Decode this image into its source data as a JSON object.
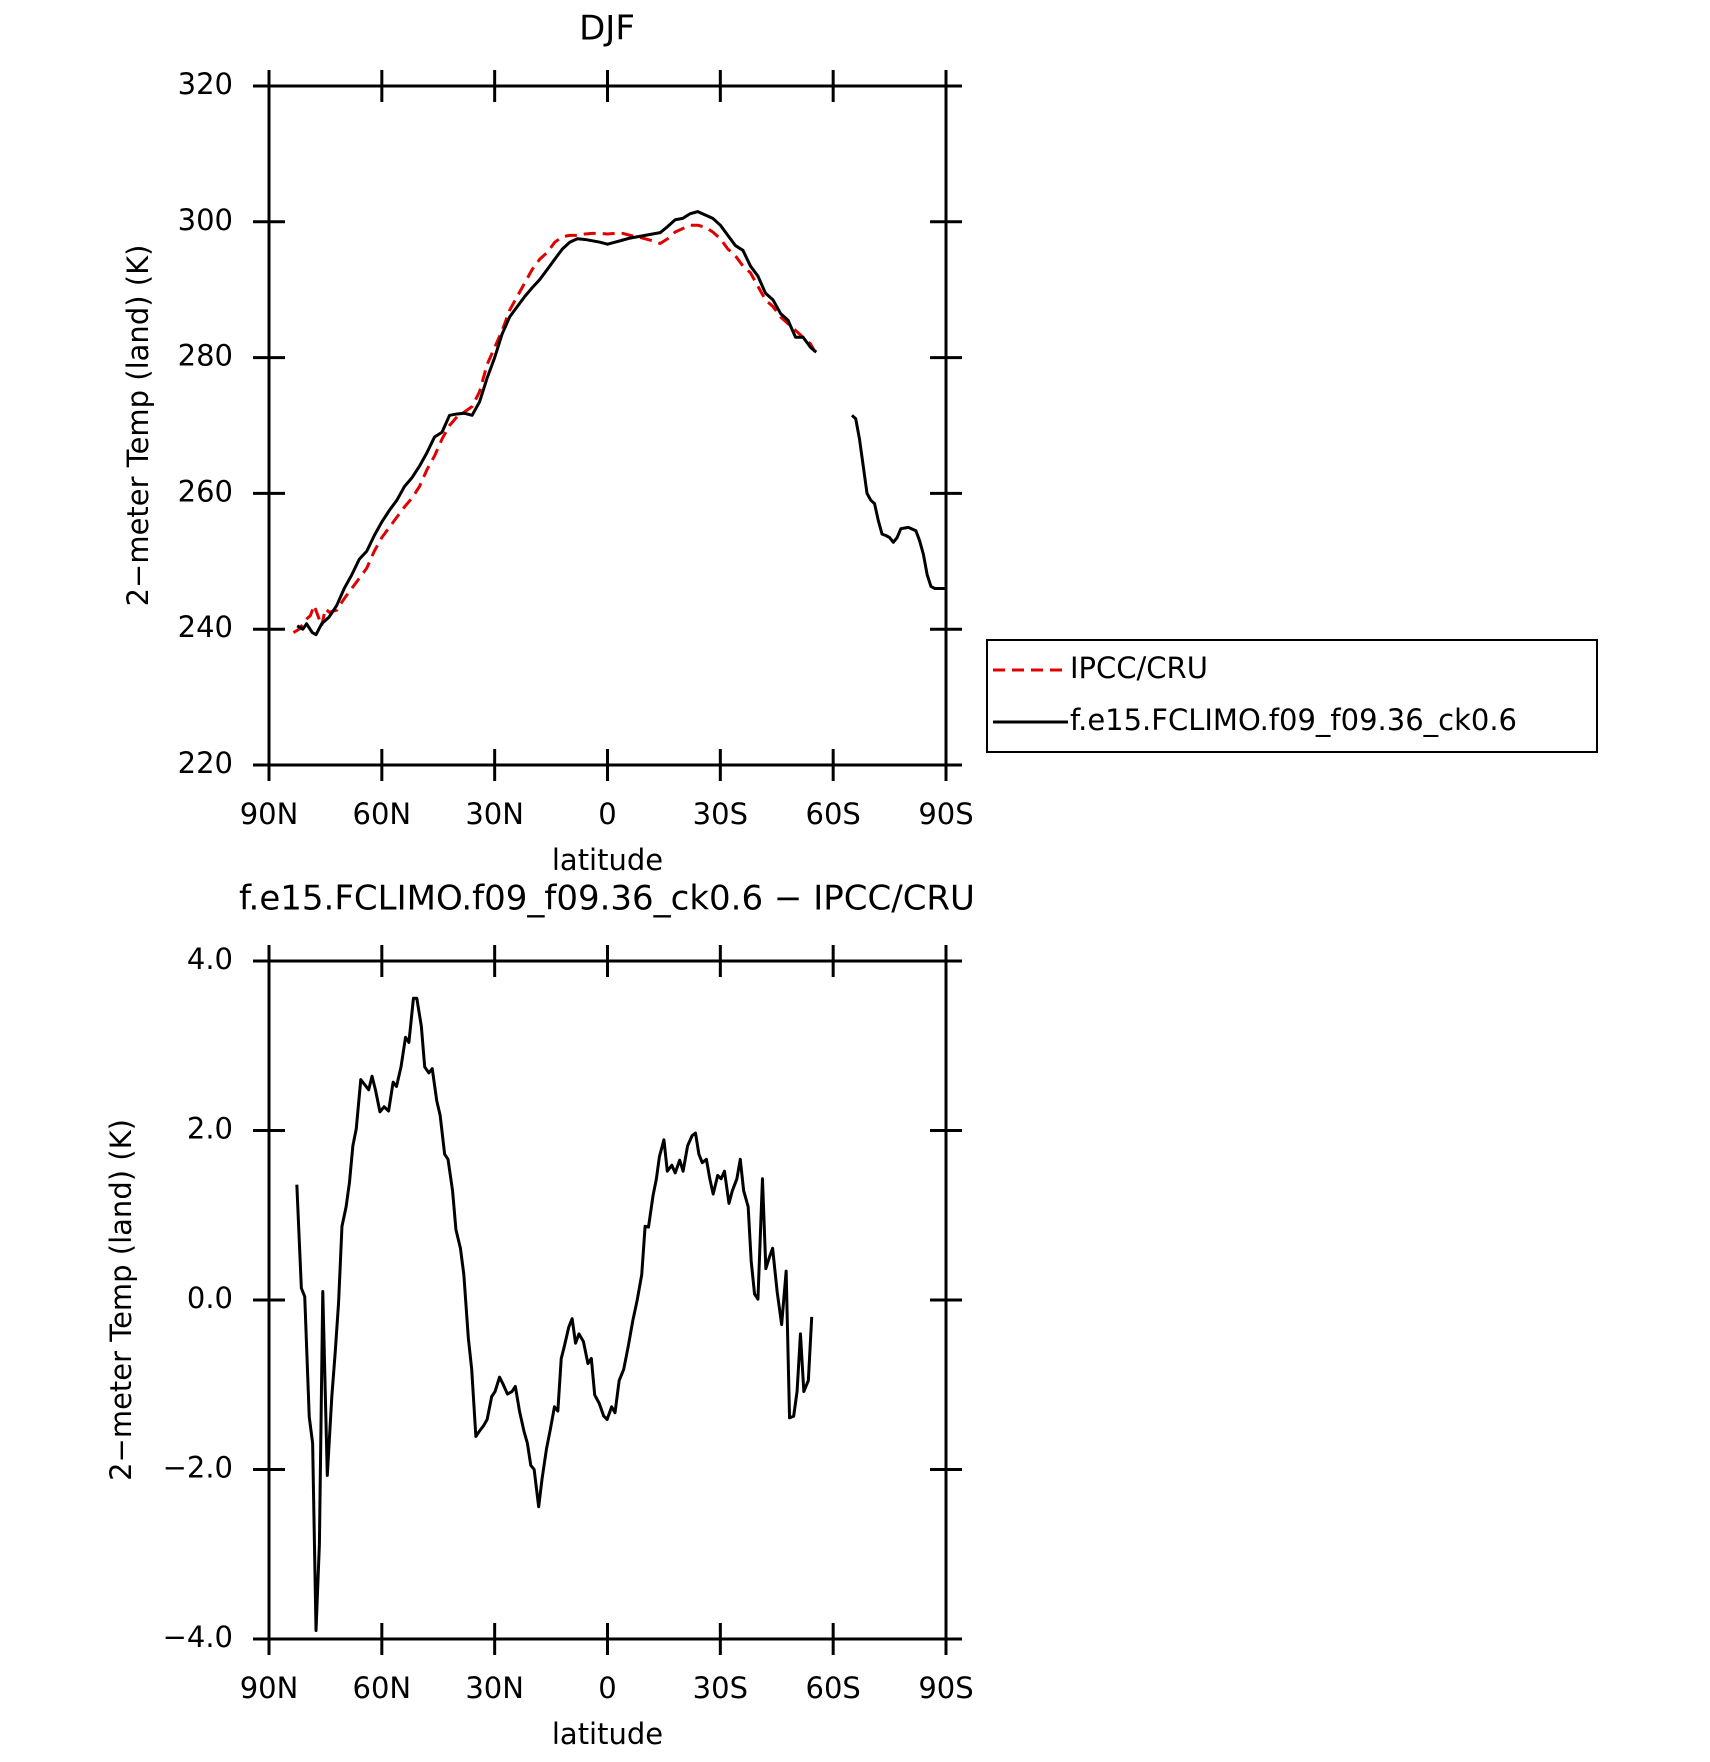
{
  "chart_data": [
    {
      "type": "line",
      "title": "DJF",
      "x_label": "latitude",
      "y_label": "2−meter Temp (land) (K)",
      "xlim": [
        90,
        -90
      ],
      "xticks": [
        {
          "value": 90,
          "label": "90N"
        },
        {
          "value": 60,
          "label": "60N"
        },
        {
          "value": 30,
          "label": "30N"
        },
        0,
        {
          "value": -30,
          "label": "30S"
        },
        {
          "value": -60,
          "label": "60S"
        },
        {
          "value": -90,
          "label": "90S"
        }
      ],
      "ylim": [
        220,
        320
      ],
      "yticks": [
        220,
        240,
        260,
        280,
        300,
        320
      ],
      "legend_position": "right",
      "series": [
        {
          "name": "IPCC/CRU",
          "color": "#e00000",
          "line_style": "dashed",
          "x": [
            83.5,
            82,
            80,
            79,
            78,
            77,
            76,
            75,
            74,
            72,
            70,
            68,
            66,
            64,
            62,
            60,
            58,
            56,
            54,
            52,
            50,
            48,
            46,
            44,
            42,
            40,
            38,
            36,
            34,
            32,
            30,
            28,
            26,
            24,
            22,
            20,
            18,
            16,
            14,
            12,
            10,
            8,
            6,
            4,
            2,
            0,
            -2,
            -4,
            -6,
            -8,
            -10,
            -12,
            -14,
            -16,
            -18,
            -20,
            -22,
            -24,
            -26,
            -28,
            -30,
            -32,
            -34,
            -36,
            -38,
            -40,
            -42,
            -44,
            -46,
            -48,
            -50,
            -52,
            -54,
            -55,
            -56
          ],
          "values": [
            239.5,
            240,
            241.5,
            242,
            243.5,
            242,
            240.5,
            243,
            242.5,
            242.8,
            244.5,
            246,
            247.5,
            249,
            251.5,
            253.5,
            255,
            256.5,
            258,
            259.3,
            261,
            263.5,
            265.5,
            268,
            270,
            271.3,
            272,
            272.8,
            275,
            279,
            281.5,
            284,
            287,
            289,
            291,
            293,
            294.5,
            295.5,
            297,
            297.8,
            298,
            298,
            298.2,
            298.3,
            298.3,
            298.2,
            298.3,
            298.3,
            298,
            297.8,
            297.5,
            297.2,
            296.8,
            297.5,
            298.5,
            299,
            299.5,
            299.5,
            299.2,
            298.5,
            297.5,
            296,
            295,
            293.5,
            292.5,
            290.5,
            288.5,
            287.5,
            286,
            285,
            284,
            283,
            282,
            281,
            281.3
          ]
        },
        {
          "name": "f.e15.FCLIMO.f09_f09.36_ck0.6",
          "color": "#000000",
          "line_style": "solid",
          "x": [
            82.5,
            81,
            80,
            78.5,
            77.5,
            76,
            74,
            72,
            70,
            68,
            66,
            64,
            62,
            60,
            58,
            56,
            54,
            52,
            50,
            48,
            46,
            44,
            42,
            40,
            38,
            36,
            34,
            32,
            30,
            28,
            26,
            24,
            22,
            20,
            18,
            16,
            14,
            12,
            10,
            8,
            6,
            4,
            2,
            0,
            -2,
            -4,
            -6,
            -8,
            -10,
            -12,
            -14,
            -16,
            -18,
            -20,
            -22,
            -24,
            -26,
            -28,
            -30,
            -32,
            -34,
            -36,
            -38,
            -40,
            -42,
            -44,
            -46,
            -48,
            -50,
            -52,
            -54,
            -55.5,
            -60,
            -65,
            -66,
            -67,
            -68,
            -69,
            -70,
            -71,
            -72,
            -73,
            -74,
            -75,
            -76,
            -77,
            -78,
            -80,
            -82,
            -83,
            -84,
            -85,
            -86,
            -87,
            -90
          ],
          "values": [
            240.5,
            240,
            240.8,
            239.5,
            239.2,
            240.8,
            241.8,
            243.5,
            246,
            248,
            250.3,
            251.5,
            253.8,
            255.8,
            257.5,
            259,
            261,
            262.3,
            264,
            266,
            268.3,
            269,
            271.5,
            271.7,
            271.8,
            271.5,
            273.5,
            277,
            280,
            283.5,
            286,
            287.5,
            289,
            290.3,
            291.5,
            293,
            294.5,
            296,
            297,
            297.5,
            297.4,
            297.2,
            297,
            296.7,
            297,
            297.3,
            297.6,
            297.8,
            298,
            298.2,
            298.4,
            299.3,
            300.3,
            300.5,
            301.2,
            301.5,
            301,
            300.5,
            299.5,
            298,
            296.5,
            295.8,
            293.5,
            292,
            289.5,
            288.5,
            286.5,
            285.5,
            283,
            283,
            281.5,
            280.8,
            null,
            271.5,
            271,
            268,
            264,
            260,
            259,
            258.5,
            256,
            254,
            253.8,
            253.5,
            252.8,
            253.5,
            254.8,
            255,
            254.5,
            253,
            251,
            248,
            246.3,
            246,
            246
          ]
        }
      ]
    },
    {
      "type": "line",
      "title": "f.e15.FCLIMO.f09_f09.36_ck0.6 − IPCC/CRU",
      "x_label": "latitude",
      "y_label": "2−meter Temp (land) (K)",
      "xlim": [
        90,
        -90
      ],
      "xticks": [
        {
          "value": 90,
          "label": "90N"
        },
        {
          "value": 60,
          "label": "60N"
        },
        {
          "value": 30,
          "label": "30N"
        },
        0,
        {
          "value": -30,
          "label": "30S"
        },
        {
          "value": -60,
          "label": "60S"
        },
        {
          "value": -90,
          "label": "90S"
        }
      ],
      "ylim": [
        -4,
        4
      ],
      "yticks": [
        {
          "value": -4,
          "label": "−4.0"
        },
        {
          "value": -2,
          "label": "−2.0"
        },
        {
          "value": 0,
          "label": "0.0"
        },
        {
          "value": 2,
          "label": "2.0"
        },
        {
          "value": 4,
          "label": "4.0"
        }
      ],
      "series": [
        {
          "color": "#000000",
          "line_style": "solid",
          "x": [
            82.6,
            81.4,
            80.5,
            79.3,
            78.4,
            77.5,
            76.6,
            75.7,
            74.5,
            73.3,
            72.4,
            71.5,
            70.6,
            69.5,
            68.6,
            67.7,
            66.8,
            65.6,
            64.7,
            63.5,
            62.6,
            61.7,
            60.5,
            59.4,
            58.2,
            57.0,
            56.1,
            54.9,
            53.7,
            52.8,
            51.6,
            50.7,
            49.5,
            48.6,
            47.5,
            46.6,
            45.4,
            44.5,
            43.3,
            42.4,
            41.2,
            40.3,
            39.1,
            38.2,
            37.0,
            36.1,
            35.0,
            34.1,
            32.9,
            32.0,
            30.8,
            29.9,
            28.7,
            27.8,
            26.6,
            25.4,
            24.5,
            23.4,
            22.2,
            21.3,
            20.4,
            19.5,
            18.3,
            17.4,
            16.2,
            15.3,
            14.1,
            13.2,
            12.3,
            11.5,
            10.3,
            9.4,
            8.5,
            7.6,
            6.4,
            5.2,
            4.3,
            3.4,
            2.2,
            1.0,
            0.1,
            -1.1,
            -2.0,
            -3.1,
            -4.3,
            -5.5,
            -6.7,
            -7.9,
            -9.1,
            -10.0,
            -10.9,
            -12.1,
            -13.0,
            -13.8,
            -15.0,
            -15.9,
            -17.1,
            -18.0,
            -19.2,
            -20.1,
            -21.3,
            -22.5,
            -23.4,
            -24.3,
            -25.2,
            -26.3,
            -27.2,
            -28.1,
            -29.3,
            -30.2,
            -31.1,
            -32.3,
            -33.2,
            -34.4,
            -35.3,
            -36.2,
            -37.4,
            -38.2,
            -39.1,
            -40.0,
            -41.2,
            -42.1,
            -43.0,
            -43.9,
            -45.1,
            -46.3,
            -47.5,
            -48.4,
            -49.5,
            -50.4,
            -51.3,
            -52.2,
            -53.4,
            -54.3
          ],
          "values": [
            1.36,
            0.14,
            0.04,
            -1.38,
            -1.69,
            -3.9,
            -2.88,
            0.1,
            -2.07,
            -1.14,
            -0.62,
            -0.03,
            0.87,
            1.1,
            1.39,
            1.82,
            2.02,
            2.6,
            2.55,
            2.48,
            2.64,
            2.48,
            2.22,
            2.28,
            2.23,
            2.57,
            2.52,
            2.75,
            3.1,
            3.04,
            3.56,
            3.56,
            3.23,
            2.75,
            2.68,
            2.73,
            2.35,
            2.18,
            1.72,
            1.66,
            1.29,
            0.83,
            0.61,
            0.3,
            -0.45,
            -0.82,
            -1.61,
            -1.55,
            -1.48,
            -1.41,
            -1.14,
            -1.08,
            -0.91,
            -0.99,
            -1.11,
            -1.08,
            -1.02,
            -1.31,
            -1.55,
            -1.69,
            -1.95,
            -2.0,
            -2.44,
            -2.11,
            -1.75,
            -1.55,
            -1.26,
            -1.31,
            -0.69,
            -0.55,
            -0.32,
            -0.22,
            -0.51,
            -0.4,
            -0.49,
            -0.75,
            -0.69,
            -1.12,
            -1.22,
            -1.37,
            -1.41,
            -1.26,
            -1.33,
            -0.95,
            -0.82,
            -0.55,
            -0.25,
            0,
            0.3,
            0.87,
            0.86,
            1.23,
            1.43,
            1.69,
            1.89,
            1.52,
            1.59,
            1.5,
            1.65,
            1.52,
            1.82,
            1.94,
            1.97,
            1.72,
            1.62,
            1.66,
            1.43,
            1.25,
            1.47,
            1.43,
            1.52,
            1.14,
            1.29,
            1.43,
            1.66,
            1.29,
            1.1,
            0.46,
            0.07,
            0.01,
            1.43,
            0.37,
            0.5,
            0.61,
            0.1,
            -0.29,
            0.34,
            -1.39,
            -1.37,
            -1.08,
            -0.4,
            -1.08,
            -0.95,
            -0.2
          ]
        }
      ]
    }
  ]
}
